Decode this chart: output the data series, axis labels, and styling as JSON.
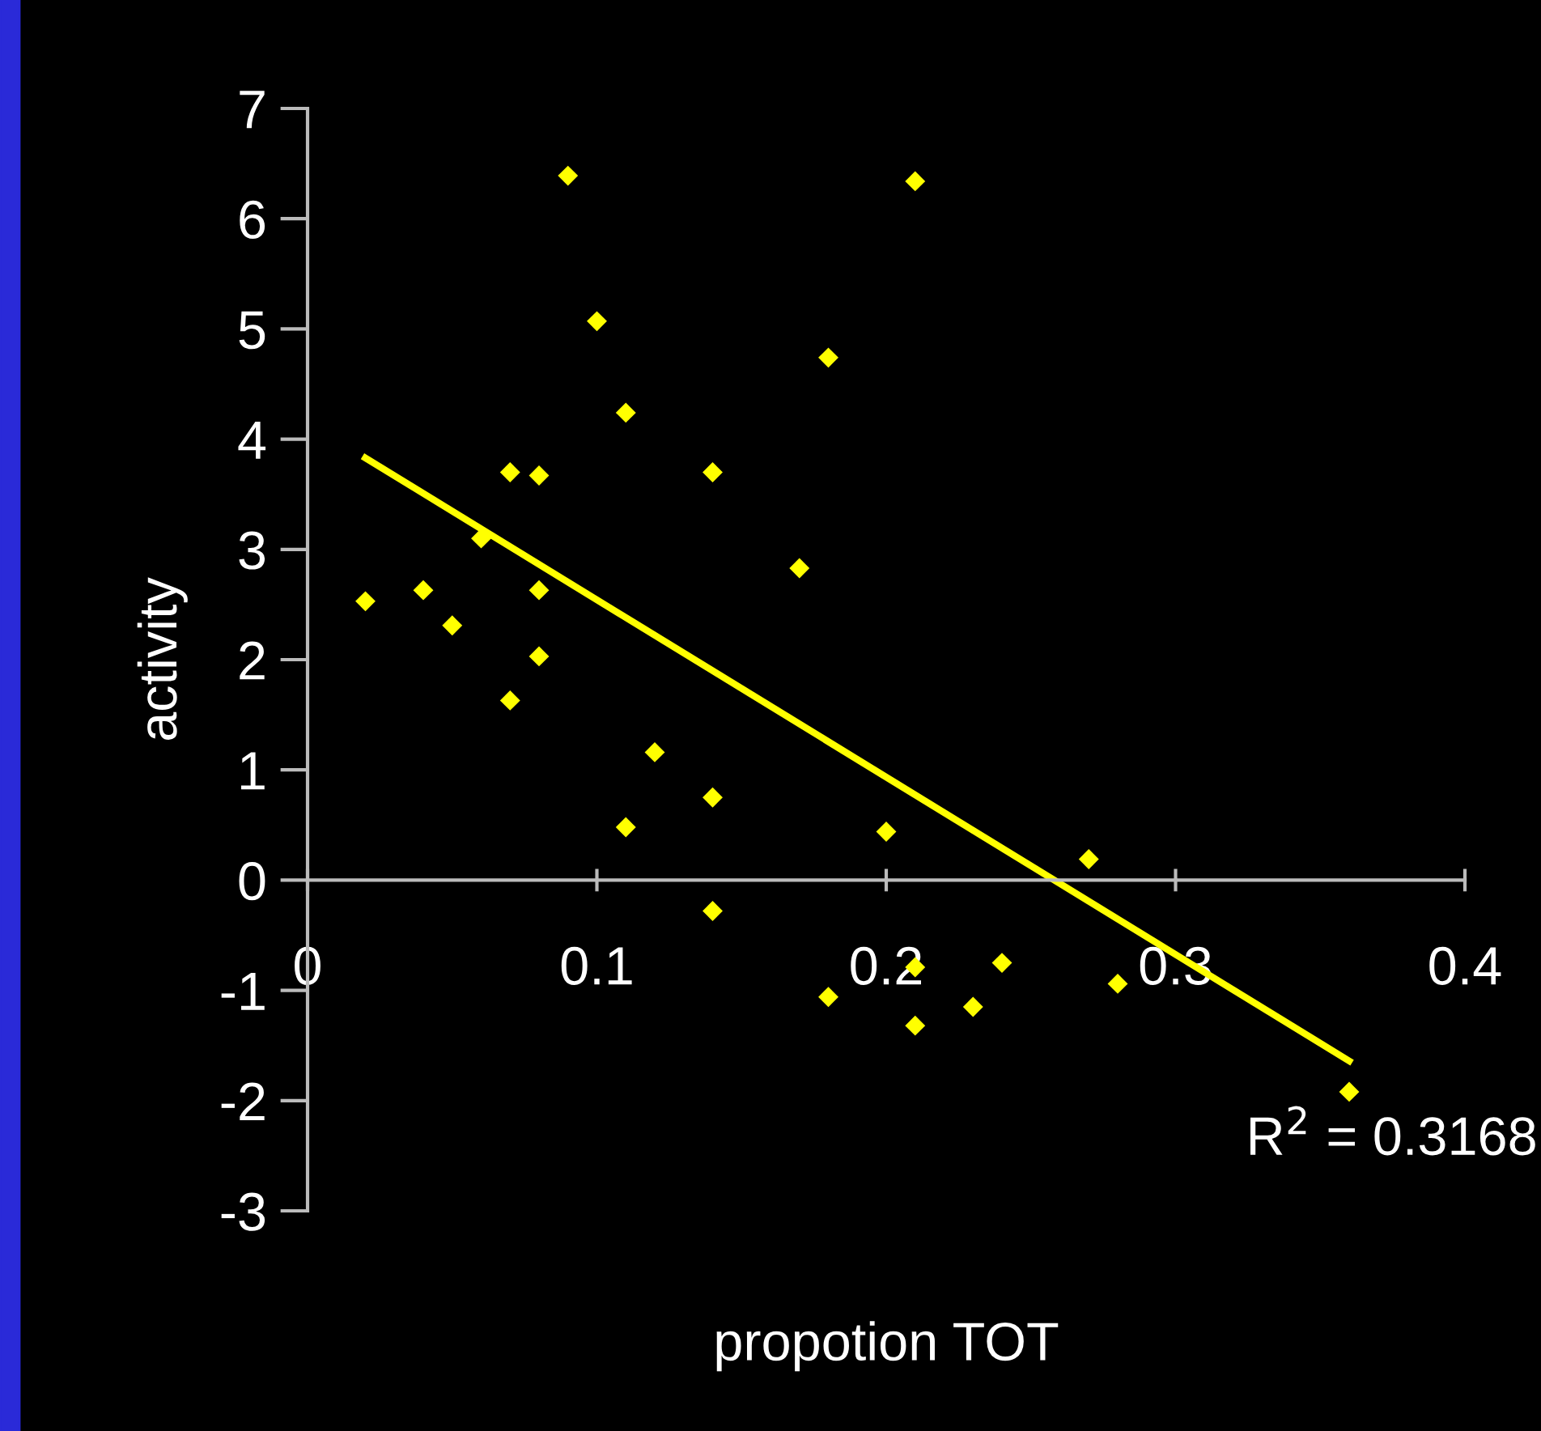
{
  "chart_data": {
    "type": "scatter",
    "xlabel": "propotion TOT",
    "ylabel": "activity",
    "xlim": [
      0,
      0.4
    ],
    "xticks": [
      0,
      0.1,
      0.2,
      0.3,
      0.4
    ],
    "ylim": [
      -3,
      7
    ],
    "yticks": [
      -3,
      -2,
      -1,
      0,
      1,
      2,
      3,
      4,
      5,
      6,
      7
    ],
    "grid": false,
    "legend": false,
    "series": [
      {
        "type": "scatter",
        "marker": "diamond",
        "color": "#ffff00",
        "x": [
          0.02,
          0.04,
          0.05,
          0.06,
          0.07,
          0.07,
          0.08,
          0.08,
          0.08,
          0.09,
          0.1,
          0.11,
          0.11,
          0.12,
          0.14,
          0.14,
          0.14,
          0.17,
          0.18,
          0.18,
          0.2,
          0.21,
          0.21,
          0.21,
          0.23,
          0.24,
          0.27,
          0.28,
          0.36
        ],
        "values": [
          2.53,
          2.63,
          2.31,
          3.1,
          3.7,
          1.63,
          3.67,
          2.63,
          2.03,
          6.39,
          5.07,
          4.24,
          0.48,
          1.16,
          3.7,
          0.75,
          -0.28,
          2.83,
          4.74,
          -1.06,
          0.44,
          6.34,
          -0.79,
          -1.32,
          -1.15,
          -0.75,
          0.19,
          -0.94,
          -1.92
        ]
      },
      {
        "type": "line",
        "marker": "none",
        "color": "#ffff00",
        "x": [
          0.02,
          0.36
        ],
        "values": [
          3.83,
          -1.64
        ]
      }
    ],
    "annotations": [
      "R$^{2}$ = 0.3168"
    ]
  }
}
